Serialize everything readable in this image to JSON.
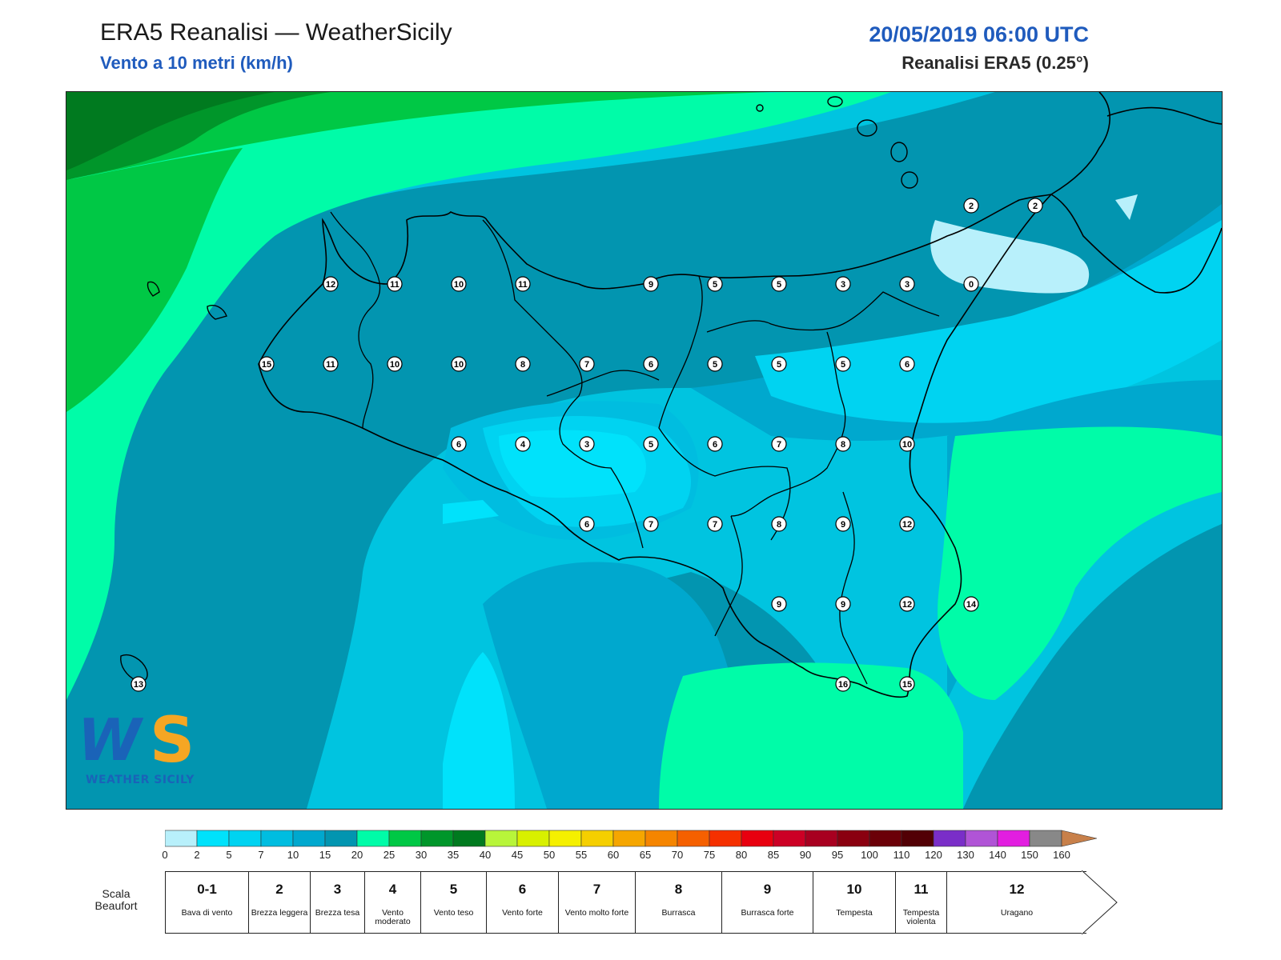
{
  "header": {
    "title": "ERA5 Reanalisi — WeatherSicily",
    "subtitle": "Vento a 10 metri (km/h)",
    "datetime": "20/05/2019 06:00 UTC",
    "source": "Reanalisi ERA5 (0.25°)"
  },
  "logo": {
    "letters": "WS",
    "caption": "WEATHER SICILY"
  },
  "station_values": [
    [
      12,
      11,
      10,
      11,
      9,
      5,
      5,
      3,
      3,
      0,
      2,
      2
    ],
    [
      15,
      11,
      10,
      10,
      8,
      7,
      6,
      5,
      5,
      5,
      6
    ],
    [
      6,
      4,
      3,
      5,
      6,
      7,
      8,
      10
    ],
    [
      6,
      7,
      7,
      8,
      9,
      12
    ],
    [
      9,
      9,
      12,
      14
    ],
    [
      13,
      16,
      15
    ]
  ],
  "colorbar": {
    "ticks": [
      "0",
      "2",
      "5",
      "7",
      "10",
      "15",
      "20",
      "25",
      "30",
      "35",
      "40",
      "45",
      "50",
      "55",
      "60",
      "65",
      "70",
      "75",
      "80",
      "85",
      "90",
      "95",
      "100",
      "110",
      "120",
      "130",
      "140",
      "150",
      "160"
    ],
    "colors": [
      "#b8f0fb",
      "#00e2fb",
      "#00d3f1",
      "#00bde0",
      "#00a8ce",
      "#0295b0",
      "#00fca8",
      "#00c845",
      "#00962a",
      "#007a1f",
      "#b8f53a",
      "#d8f000",
      "#f5f000",
      "#f5cf00",
      "#f5a600",
      "#f58500",
      "#f56000",
      "#f53000",
      "#e8000f",
      "#cc0025",
      "#a80020",
      "#8a0010",
      "#6b0008",
      "#520005",
      "#7a2ec8",
      "#b054d6",
      "#e21ee0",
      "#888888",
      "#5a5a5a",
      "#000000",
      "#8a4a2a",
      "#c8804a"
    ]
  },
  "beaufort": {
    "label": "Scala Beaufort",
    "classes": [
      {
        "num": "0-1",
        "desc": "Bava di vento"
      },
      {
        "num": "2",
        "desc": "Brezza leggera"
      },
      {
        "num": "3",
        "desc": "Brezza tesa"
      },
      {
        "num": "4",
        "desc": "Vento moderato"
      },
      {
        "num": "5",
        "desc": "Vento teso"
      },
      {
        "num": "6",
        "desc": "Vento forte"
      },
      {
        "num": "7",
        "desc": "Vento molto forte"
      },
      {
        "num": "8",
        "desc": "Burrasca"
      },
      {
        "num": "9",
        "desc": "Burrasca forte"
      },
      {
        "num": "10",
        "desc": "Tempesta"
      },
      {
        "num": "11",
        "desc": "Tempesta violenta"
      },
      {
        "num": "12",
        "desc": "Uragano"
      }
    ]
  }
}
